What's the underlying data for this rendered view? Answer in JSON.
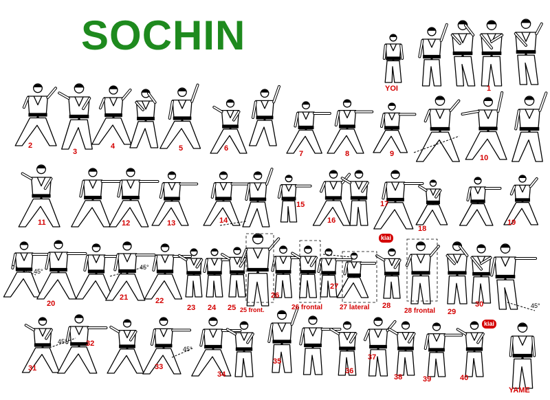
{
  "title": "SOCHIN",
  "colors": {
    "title": "#1e8a1e",
    "label": "#d40000",
    "figure": "#000000",
    "belt": "#000000"
  },
  "labels": [
    "YOI",
    "1",
    "2",
    "3",
    "4",
    "5",
    "6",
    "7",
    "8",
    "9",
    "10",
    "11",
    "12",
    "13",
    "14",
    "15",
    "16",
    "17",
    "18",
    "19",
    "20",
    "21",
    "22",
    "23",
    "24",
    "25",
    "26",
    "27",
    "28",
    "29",
    "30",
    "25 front.",
    "26 frontal",
    "27 lateral",
    "28 frontal",
    "31",
    "32",
    "33",
    "34",
    "35",
    "36",
    "37",
    "38",
    "39",
    "40",
    "YAME"
  ],
  "angles": [
    "45°",
    "45°",
    "45°",
    "45°"
  ],
  "kiai": [
    "kiai",
    "kiai"
  ]
}
